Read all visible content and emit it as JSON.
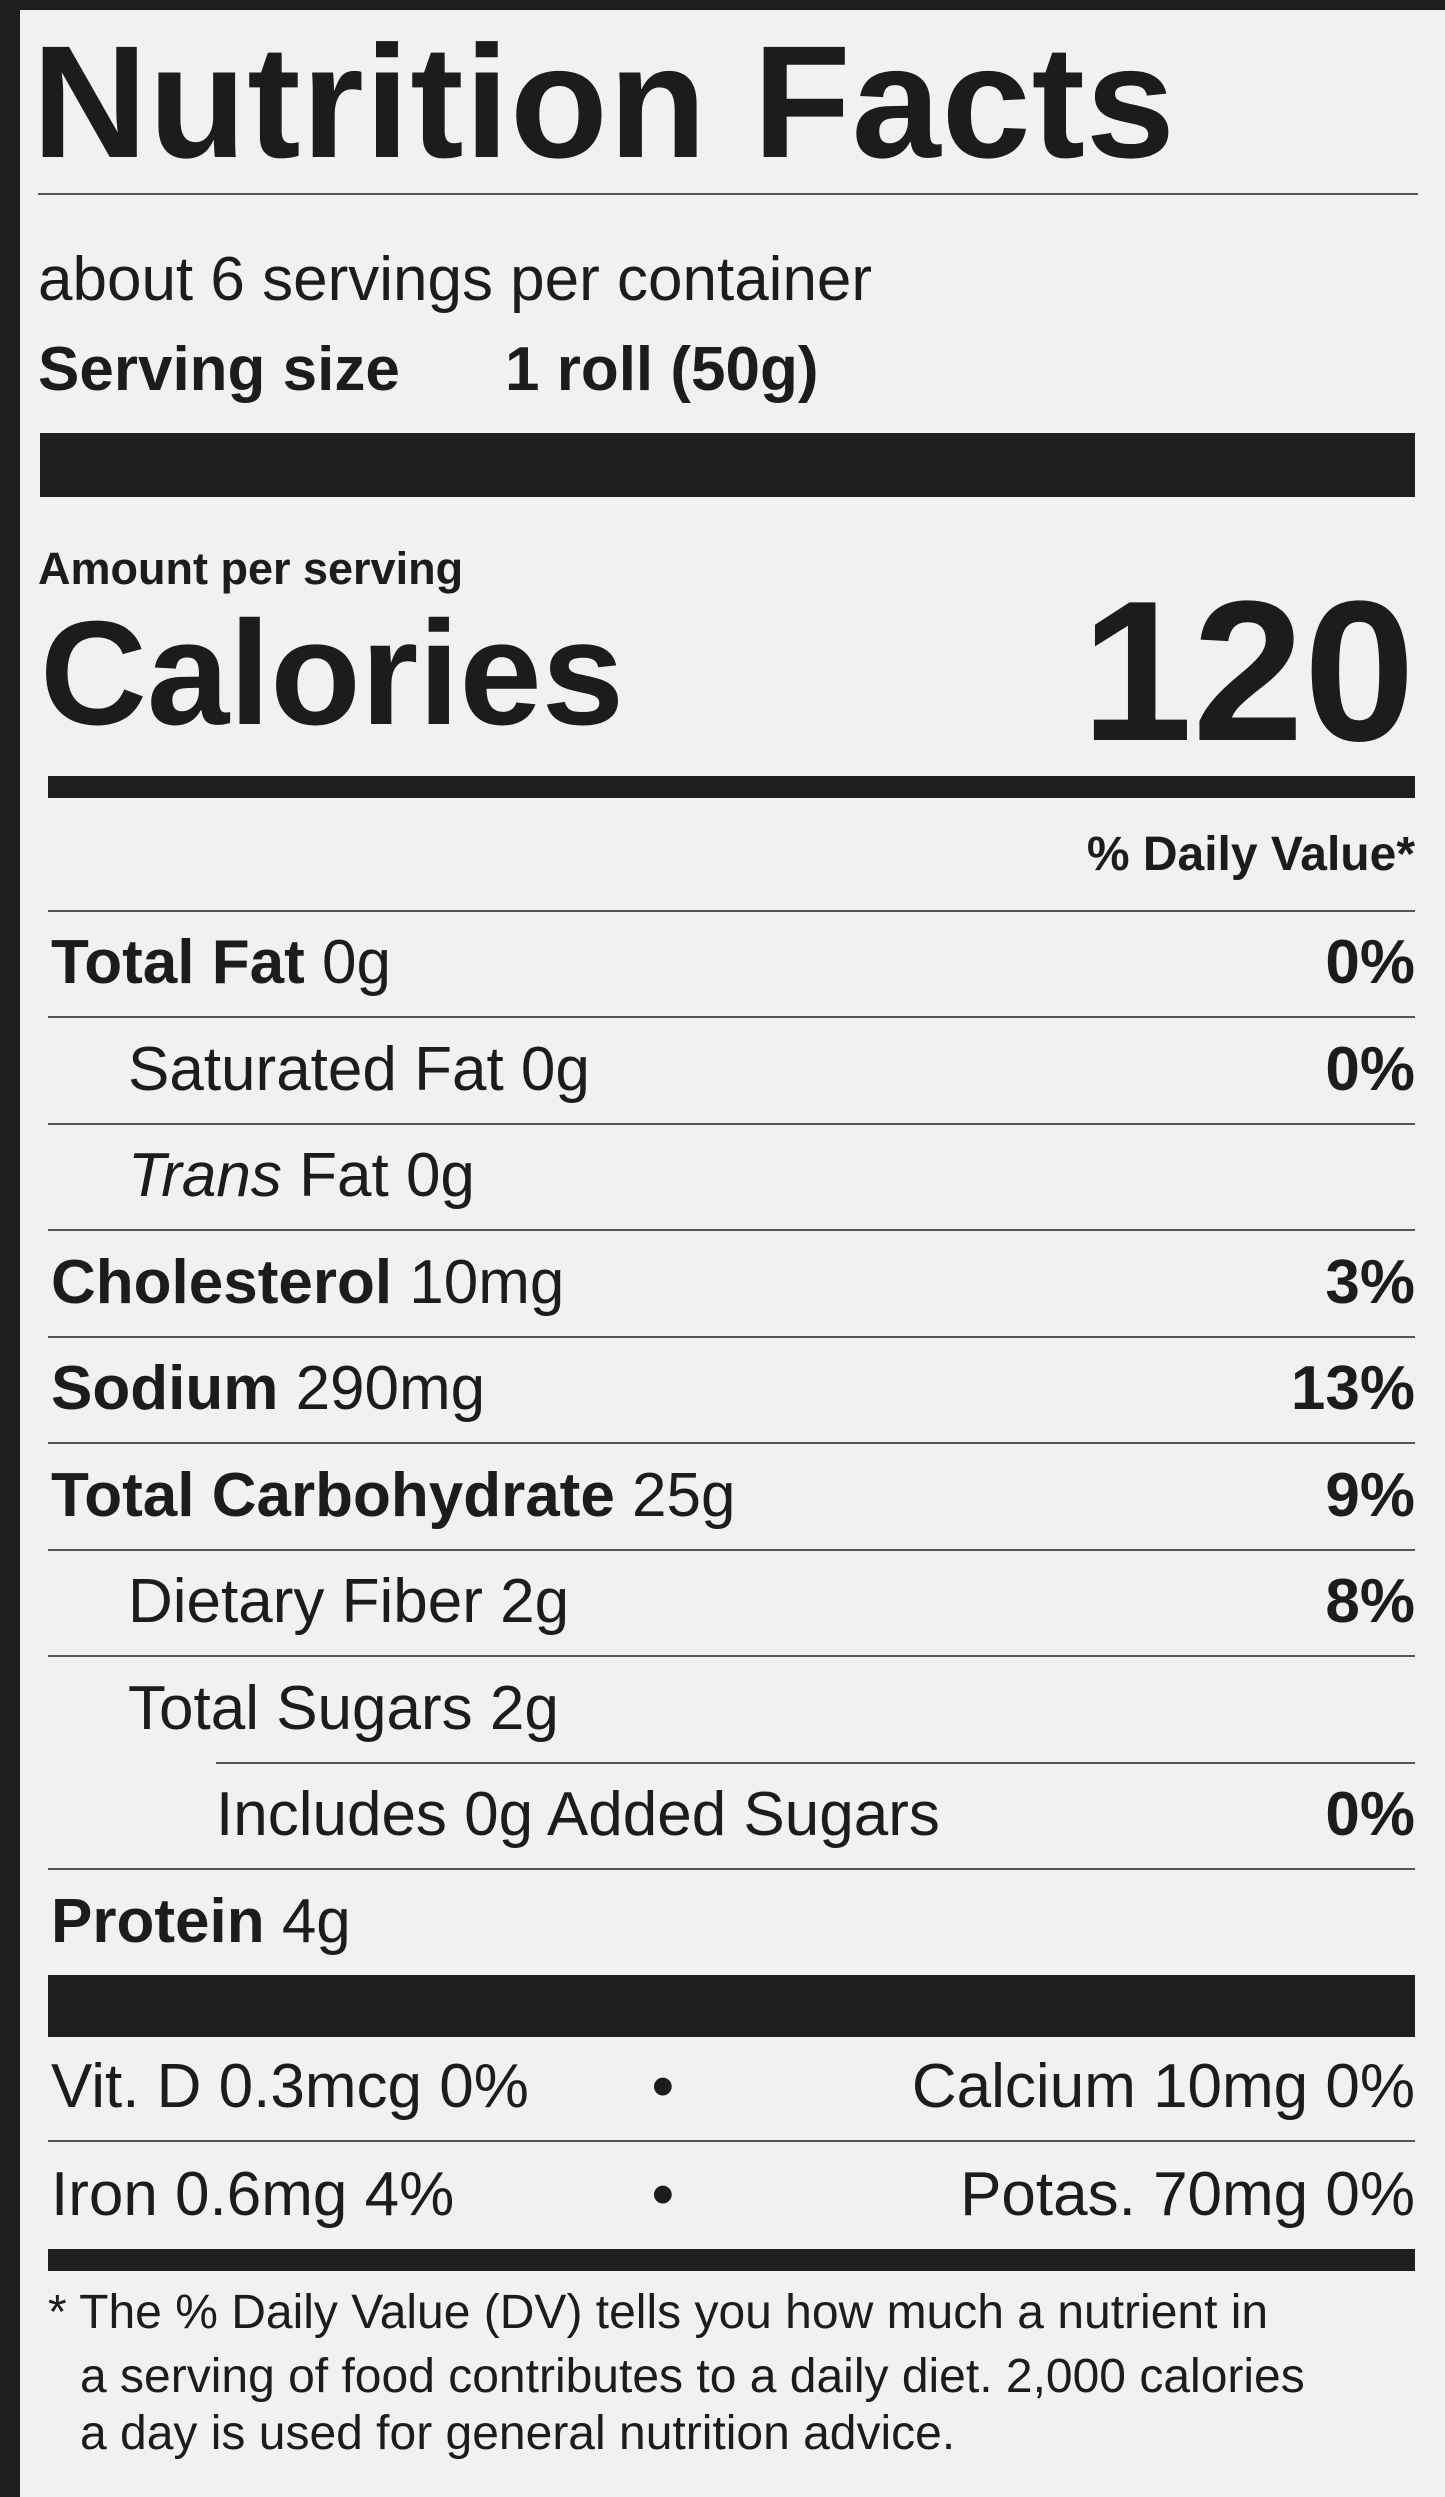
{
  "header": {
    "title": "Nutrition Facts",
    "servings": "about 6 servings per container",
    "serving_size_label": "Serving size",
    "serving_size_value": "1 roll (50g)"
  },
  "calories": {
    "amount_label": "Amount per serving",
    "label": "Calories",
    "value": "120"
  },
  "dv_header": "% Daily Value*",
  "nutrients": [
    {
      "name": "Total Fat",
      "amount": "0g",
      "dv": "0%",
      "level": 0
    },
    {
      "name": "Saturated Fat",
      "amount": "0g",
      "dv": "0%",
      "level": 1
    },
    {
      "name_italic": "Trans",
      "name": "Fat",
      "amount": "0g",
      "level": 1
    },
    {
      "name": "Cholesterol",
      "amount": "10mg",
      "dv": "3%",
      "level": 0
    },
    {
      "name": "Sodium",
      "amount": "290mg",
      "dv": "13%",
      "level": 0
    },
    {
      "name": "Total Carbohydrate",
      "amount": "25g",
      "dv": "9%",
      "level": 0
    },
    {
      "name": "Dietary Fiber",
      "amount": "2g",
      "dv": "8%",
      "level": 1
    },
    {
      "name": "Total Sugars",
      "amount": "2g",
      "level": 1
    },
    {
      "name": "Includes 0g Added Sugars",
      "dv": "0%",
      "level": 2
    },
    {
      "name": "Protein",
      "amount": "4g",
      "level": 0
    }
  ],
  "vitamins": [
    [
      "Vit. D 0.3mcg 0%",
      "Calcium 10mg 0%"
    ],
    [
      "Iron 0.6mg 4%",
      "Potas. 70mg 0%"
    ]
  ],
  "footnote": [
    "* The % Daily Value (DV) tells you how much a nutrient in",
    "a serving of food contributes to a daily diet. 2,000 calories",
    "a day is used for general nutrition advice."
  ]
}
